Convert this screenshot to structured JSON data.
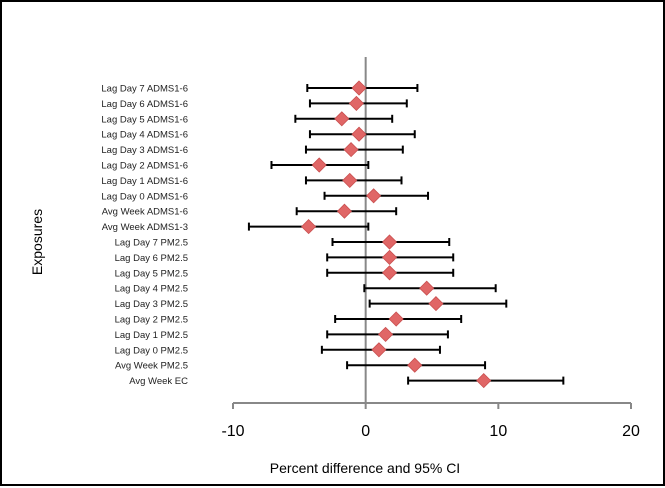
{
  "chart_data": {
    "type": "forest",
    "xlabel": "Percent difference and 95% CI",
    "ylabel": "Exposures",
    "xlim": [
      -10,
      20
    ],
    "xticks": [
      -10,
      0,
      10,
      20
    ],
    "marker_color": "#e06666",
    "ci_color": "#000000",
    "axis_color": "#888888",
    "rows": [
      {
        "label": "Lag Day 7 ADMS1-6",
        "est": -0.5,
        "lo": -4.4,
        "hi": 3.9
      },
      {
        "label": "Lag Day 6 ADMS1-6",
        "est": -0.7,
        "lo": -4.2,
        "hi": 3.1
      },
      {
        "label": "Lag Day 5 ADMS1-6",
        "est": -1.8,
        "lo": -5.3,
        "hi": 2.0
      },
      {
        "label": "Lag Day 4 ADMS1-6",
        "est": -0.5,
        "lo": -4.2,
        "hi": 3.7
      },
      {
        "label": "Lag Day 3 ADMS1-6",
        "est": -1.1,
        "lo": -4.5,
        "hi": 2.8
      },
      {
        "label": "Lag Day 2 ADMS1-6",
        "est": -3.5,
        "lo": -7.1,
        "hi": 0.2
      },
      {
        "label": "Lag Day 1 ADMS1-6",
        "est": -1.2,
        "lo": -4.5,
        "hi": 2.7
      },
      {
        "label": "Lag Day 0 ADMS1-6",
        "est": 0.6,
        "lo": -3.1,
        "hi": 4.7
      },
      {
        "label": "Avg Week ADMS1-6",
        "est": -1.6,
        "lo": -5.2,
        "hi": 2.3
      },
      {
        "label": "Avg Week ADMS1-3",
        "est": -4.3,
        "lo": -8.8,
        "hi": 0.2
      },
      {
        "label": "Lag Day 7 PM2.5",
        "est": 1.8,
        "lo": -2.5,
        "hi": 6.3
      },
      {
        "label": "Lag Day 6 PM2.5",
        "est": 1.8,
        "lo": -2.9,
        "hi": 6.6
      },
      {
        "label": "Lag Day 5 PM2.5",
        "est": 1.8,
        "lo": -2.9,
        "hi": 6.6
      },
      {
        "label": "Lag Day 4 PM2.5",
        "est": 4.6,
        "lo": -0.1,
        "hi": 9.8
      },
      {
        "label": "Lag Day 3 PM2.5",
        "est": 5.3,
        "lo": 0.3,
        "hi": 10.6
      },
      {
        "label": "Lag Day 2 PM2.5",
        "est": 2.3,
        "lo": -2.3,
        "hi": 7.2
      },
      {
        "label": "Lag Day 1 PM2.5",
        "est": 1.5,
        "lo": -2.9,
        "hi": 6.2
      },
      {
        "label": "Lag Day 0 PM2.5",
        "est": 1.0,
        "lo": -3.3,
        "hi": 5.6
      },
      {
        "label": "Avg Week PM2.5",
        "est": 3.7,
        "lo": -1.4,
        "hi": 9.0
      },
      {
        "label": "Avg Week EC",
        "est": 8.9,
        "lo": 3.2,
        "hi": 14.9
      }
    ]
  }
}
